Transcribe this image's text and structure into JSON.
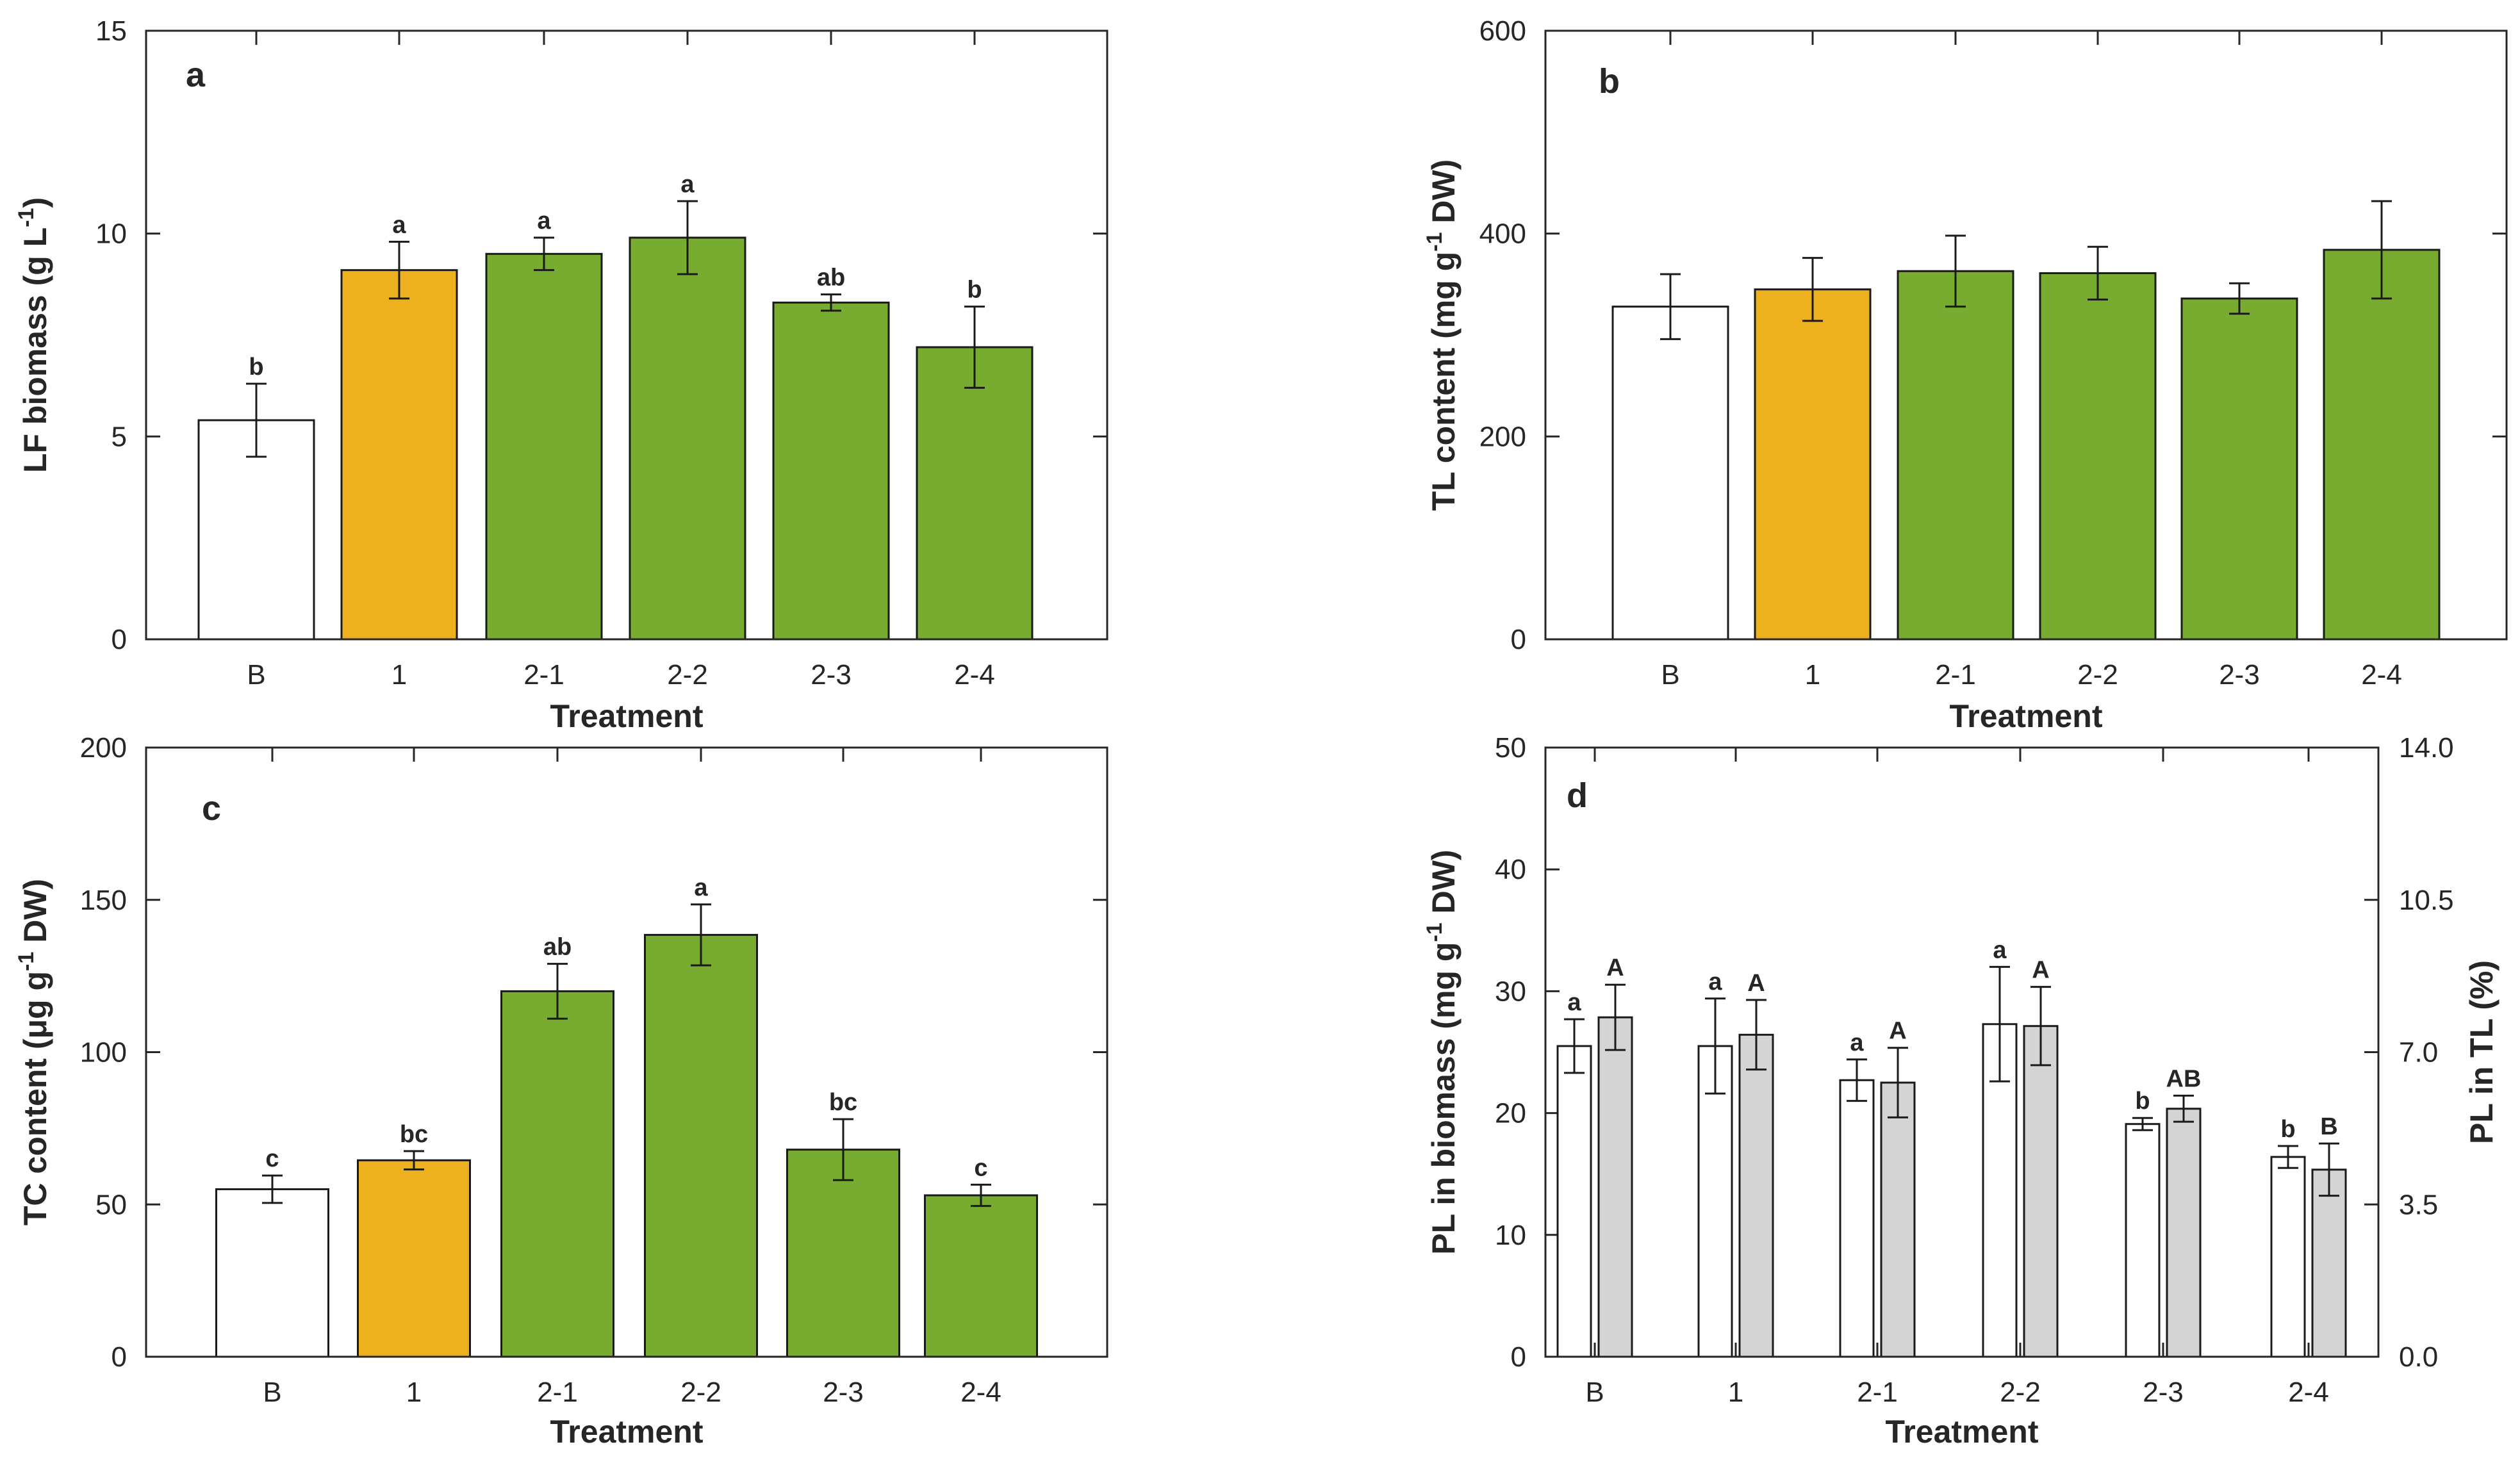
{
  "colors": {
    "control": "#ffffff",
    "treatment1": "#edb120",
    "treatment2": "#77ac30",
    "pl_tl": "#d4d4d4",
    "axis": "#262626"
  },
  "chart_data": [
    {
      "type": "bar",
      "panel": "a",
      "categories": [
        "B",
        "1",
        "2-1",
        "2-2",
        "2-3",
        "2-4"
      ],
      "values": [
        5.4,
        9.1,
        9.5,
        9.9,
        8.3,
        7.2
      ],
      "errors": [
        0.9,
        0.7,
        0.4,
        0.9,
        0.2,
        1.0
      ],
      "sig_labels": [
        "b",
        "a",
        "a",
        "a",
        "ab",
        "b"
      ],
      "bar_colors": [
        "control",
        "treatment1",
        "treatment2",
        "treatment2",
        "treatment2",
        "treatment2"
      ],
      "xlabel": "Treatment",
      "ylabel_main": "LF biomass (g L",
      "ylabel_sup": "-1",
      "ylabel_tail": ")",
      "ylim": [
        0,
        15
      ],
      "yticks": [
        0,
        5,
        10,
        15
      ],
      "ytick_labels": [
        "0",
        "5",
        "10",
        "15"
      ]
    },
    {
      "type": "bar",
      "panel": "b",
      "categories": [
        "B",
        "1",
        "2-1",
        "2-2",
        "2-3",
        "2-4"
      ],
      "values": [
        328,
        345,
        363,
        361,
        336,
        384
      ],
      "errors": [
        32,
        31,
        35,
        26,
        15,
        48
      ],
      "sig_labels": [],
      "bar_colors": [
        "control",
        "treatment1",
        "treatment2",
        "treatment2",
        "treatment2",
        "treatment2"
      ],
      "xlabel": "Treatment",
      "ylabel_main": "TL content (mg g",
      "ylabel_sup": "-1",
      "ylabel_tail": " DW)",
      "ylim": [
        0,
        600
      ],
      "yticks": [
        0,
        200,
        400,
        600
      ],
      "ytick_labels": [
        "0",
        "200",
        "400",
        "600"
      ]
    },
    {
      "type": "bar",
      "panel": "c",
      "categories": [
        "B",
        "1",
        "2-1",
        "2-2",
        "2-3",
        "2-4"
      ],
      "values": [
        55,
        64.5,
        120,
        138.5,
        68,
        53
      ],
      "errors": [
        4.5,
        3,
        9,
        10,
        10,
        3.5
      ],
      "sig_labels": [
        "c",
        "bc",
        "ab",
        "a",
        "bc",
        "c"
      ],
      "bar_colors": [
        "control",
        "treatment1",
        "treatment2",
        "treatment2",
        "treatment2",
        "treatment2"
      ],
      "xlabel": "Treatment",
      "ylabel_main": "TC content (μg g",
      "ylabel_sup": "-1",
      "ylabel_tail": " DW)",
      "ylim": [
        0,
        200
      ],
      "yticks": [
        0,
        50,
        100,
        150,
        200
      ],
      "ytick_labels": [
        "0",
        "50",
        "100",
        "150",
        "200"
      ]
    },
    {
      "type": "bar",
      "panel": "d",
      "categories": [
        "B",
        "1",
        "2-1",
        "2-2",
        "2-3",
        "2-4"
      ],
      "series": [
        {
          "name": "PL in biomass",
          "axis": "left",
          "values": [
            25.5,
            25.5,
            22.7,
            27.3,
            19.1,
            16.4
          ],
          "errors": [
            2.2,
            3.9,
            1.7,
            4.7,
            0.5,
            0.9
          ],
          "sig_labels": [
            "a",
            "a",
            "a",
            "a",
            "b",
            "b"
          ],
          "color": "control"
        },
        {
          "name": "PL in TL",
          "axis": "right",
          "values": [
            7.8,
            7.4,
            6.3,
            7.6,
            5.7,
            4.3
          ],
          "errors": [
            0.75,
            0.8,
            0.8,
            0.9,
            0.3,
            0.6
          ],
          "sig_labels": [
            "A",
            "A",
            "A",
            "A",
            "AB",
            "B"
          ],
          "color": "pl_tl"
        }
      ],
      "xlabel": "Treatment",
      "ylabel_main": "PL in biomass (mg g",
      "ylabel_sup": "-1",
      "ylabel_tail": " DW)",
      "ylim": [
        0,
        50
      ],
      "yticks": [
        0,
        10,
        20,
        30,
        40,
        50
      ],
      "ytick_labels": [
        "0",
        "10",
        "20",
        "30",
        "40",
        "50"
      ],
      "ylabel_right": "PL in TL (%)",
      "ylim_right": [
        0,
        14
      ],
      "yticks_right": [
        0,
        3.5,
        7,
        10.5,
        14
      ],
      "ytick_labels_right": [
        "0.0",
        "3.5",
        "7.0",
        "10.5",
        "14.0"
      ]
    }
  ]
}
